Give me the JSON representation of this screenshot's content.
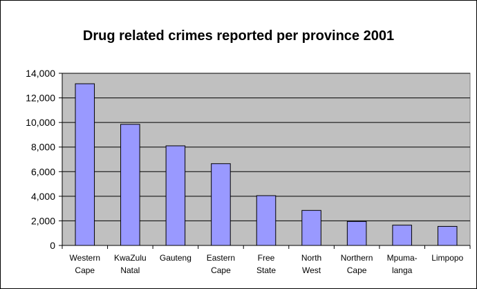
{
  "chart_data": {
    "type": "bar",
    "title": "Drug related crimes reported per province 2001",
    "xlabel": "",
    "ylabel": "",
    "categories": [
      [
        "Western",
        "Cape"
      ],
      [
        "KwaZulu",
        "Natal"
      ],
      [
        "Gauteng"
      ],
      [
        "Eastern",
        "Cape"
      ],
      [
        "Free",
        "State"
      ],
      [
        "North",
        "West"
      ],
      [
        "Northern",
        "Cape"
      ],
      [
        "Mpuma-",
        "langa"
      ],
      [
        "Limpopo"
      ]
    ],
    "values": [
      13150,
      9850,
      8100,
      6650,
      4050,
      2850,
      1950,
      1650,
      1550
    ],
    "ylim": [
      0,
      14000
    ],
    "yticks": [
      "0",
      "2,000",
      "4,000",
      "6,000",
      "8,000",
      "10,000",
      "12,000",
      "14,000"
    ],
    "grid": true,
    "legend": "none",
    "colors": {
      "bar_fill": "#9999ff",
      "bar_stroke": "#000000",
      "plot_background": "#c0c0c0",
      "gridline": "#000000"
    }
  }
}
